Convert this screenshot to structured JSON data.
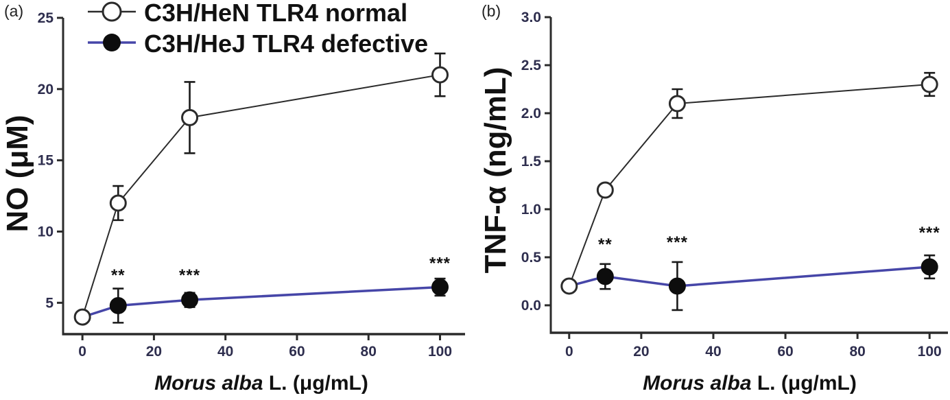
{
  "figure": {
    "panel_labels": [
      "(a)",
      "(b)"
    ],
    "background": "#ffffff"
  },
  "colors": {
    "axis": "#2b2b2b",
    "tick_label": "#2e2e4e",
    "text": "#111111",
    "normal_line": "#2b2b2b",
    "defective_line": "#4646a8",
    "marker_fill": "#0d0d0d",
    "error_bar": "#1a1a1a"
  },
  "chart_data": [
    {
      "type": "line",
      "panel": "a",
      "ylabel": "NO (μM)",
      "xlabel": {
        "italic": "Morus alba",
        "rest": " L. (μg/mL)"
      },
      "xlim": [
        -5.4,
        107
      ],
      "ylim": [
        2.8,
        25
      ],
      "x_ticks": [
        {
          "v": 0,
          "label": "0"
        },
        {
          "v": 20,
          "label": "20"
        },
        {
          "v": 40,
          "label": "40"
        },
        {
          "v": 60,
          "label": "60"
        },
        {
          "v": 80,
          "label": "80"
        },
        {
          "v": 100,
          "label": "100"
        }
      ],
      "y_ticks": [
        {
          "v": 5,
          "label": "5"
        },
        {
          "v": 10,
          "label": "10"
        },
        {
          "v": 15,
          "label": "15"
        },
        {
          "v": 20,
          "label": "20"
        },
        {
          "v": 25,
          "label": "25"
        }
      ],
      "legend_show": true,
      "series": [
        {
          "name": "C3H/HeN TLR4 normal",
          "marker": "open-circle",
          "color": "#2b2b2b",
          "hide_marker_at": [],
          "points": [
            {
              "x": 0,
              "y": 4,
              "err": 0
            },
            {
              "x": 10,
              "y": 12,
              "err": 1.2
            },
            {
              "x": 30,
              "y": 18,
              "err": 2.5
            },
            {
              "x": 100,
              "y": 21,
              "err": 1.5
            }
          ]
        },
        {
          "name": "C3H/HeJ TLR4 defective",
          "marker": "filled-circle",
          "color": "#4646a8",
          "hide_marker_at": [
            0
          ],
          "points": [
            {
              "x": 0,
              "y": 4,
              "err": 0
            },
            {
              "x": 10,
              "y": 4.8,
              "err": 1.2
            },
            {
              "x": 30,
              "y": 5.2,
              "err": 0.5
            },
            {
              "x": 100,
              "y": 6.1,
              "err": 0.6
            }
          ]
        }
      ],
      "annotations": [
        {
          "x": 10,
          "y": 6.55,
          "text": "**"
        },
        {
          "x": 30,
          "y": 6.55,
          "text": "***"
        },
        {
          "x": 100,
          "y": 7.4,
          "text": "***"
        }
      ]
    },
    {
      "type": "line",
      "panel": "b",
      "ylabel": "TNF-α (ng/mL)",
      "xlabel": {
        "italic": "Morus alba",
        "rest": " L. (μg/mL)"
      },
      "xlim": [
        -5.1,
        105.1
      ],
      "ylim": [
        -0.286,
        3.0
      ],
      "x_ticks": [
        {
          "v": 0,
          "label": "0"
        },
        {
          "v": 20,
          "label": "20"
        },
        {
          "v": 40,
          "label": "40"
        },
        {
          "v": 60,
          "label": "60"
        },
        {
          "v": 80,
          "label": "80"
        },
        {
          "v": 100,
          "label": "100"
        }
      ],
      "y_ticks": [
        {
          "v": 0.0,
          "label": "0.0"
        },
        {
          "v": 0.5,
          "label": "0.5"
        },
        {
          "v": 1.0,
          "label": "1.0"
        },
        {
          "v": 1.5,
          "label": "1.5"
        },
        {
          "v": 2.0,
          "label": "2.0"
        },
        {
          "v": 2.5,
          "label": "2.5"
        },
        {
          "v": 3.0,
          "label": "3.0"
        }
      ],
      "legend_show": false,
      "series": [
        {
          "name": "C3H/HeN TLR4 normal",
          "marker": "open-circle",
          "color": "#2b2b2b",
          "hide_marker_at": [],
          "points": [
            {
              "x": 0,
              "y": 0.2,
              "err": 0
            },
            {
              "x": 10,
              "y": 1.2,
              "err": 0
            },
            {
              "x": 30,
              "y": 2.1,
              "err": 0.15
            },
            {
              "x": 100,
              "y": 2.3,
              "err": 0.12
            }
          ]
        },
        {
          "name": "C3H/HeJ TLR4 defective",
          "marker": "filled-circle",
          "color": "#4646a8",
          "hide_marker_at": [
            0
          ],
          "points": [
            {
              "x": 0,
              "y": 0.2,
              "err": 0
            },
            {
              "x": 10,
              "y": 0.3,
              "err": 0.13
            },
            {
              "x": 30,
              "y": 0.2,
              "err": 0.25
            },
            {
              "x": 100,
              "y": 0.4,
              "err": 0.12
            }
          ]
        }
      ],
      "annotations": [
        {
          "x": 10,
          "y": 0.58,
          "text": "**"
        },
        {
          "x": 30,
          "y": 0.6,
          "text": "***"
        },
        {
          "x": 100,
          "y": 0.7,
          "text": "***"
        }
      ]
    }
  ],
  "legend": {
    "entries": [
      {
        "label": "C3H/HeN TLR4 normal",
        "marker": "open-circle"
      },
      {
        "label": "C3H/HeJ TLR4 defective",
        "marker": "filled-circle"
      }
    ]
  }
}
